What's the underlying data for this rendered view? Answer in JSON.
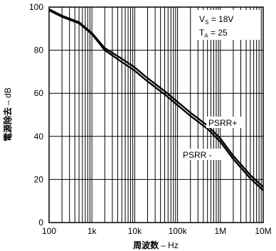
{
  "chart_data": {
    "type": "line",
    "xlabel_cjk": "周波数",
    "xlabel_unit": "– Hz",
    "ylabel_cjk": "電源除去",
    "ylabel_unit": "– dB",
    "x_scale": "log",
    "xlim": [
      100,
      10000000
    ],
    "ylim": [
      0,
      100
    ],
    "x_ticks": [
      100,
      1000,
      10000,
      100000,
      1000000,
      10000000
    ],
    "x_tick_labels": [
      "100",
      "1k",
      "10k",
      "100k",
      "1M",
      "10M"
    ],
    "y_ticks": [
      0,
      20,
      40,
      60,
      80,
      100
    ],
    "y_tick_labels": [
      "0",
      "20",
      "40",
      "60",
      "80",
      "100"
    ],
    "grid": true,
    "conditions": {
      "vs_main": "V",
      "vs_sub": "S",
      "vs_value": " = 18V",
      "ta_main": "T",
      "ta_sub": "A",
      "ta_value": " = 25"
    },
    "series": [
      {
        "name": "PSRR+",
        "x": [
          100,
          200,
          500,
          1000,
          2000,
          5000,
          10000,
          20000,
          50000,
          100000,
          200000,
          500000,
          1000000,
          2000000,
          5000000,
          10000000
        ],
        "y": [
          99,
          96,
          93,
          88,
          81,
          76,
          72,
          67,
          61,
          56,
          51,
          45,
          39,
          31,
          22,
          16.5
        ]
      },
      {
        "name": "PSRR -",
        "x": [
          100,
          200,
          500,
          1000,
          2000,
          5000,
          10000,
          20000,
          50000,
          100000,
          200000,
          500000,
          1000000,
          2000000,
          5000000,
          10000000
        ],
        "y": [
          98.5,
          95.5,
          92.5,
          87.5,
          80,
          74.5,
          70.5,
          65.5,
          59.5,
          54.5,
          49.5,
          43.5,
          37.5,
          29.5,
          20.5,
          15
        ]
      }
    ]
  }
}
